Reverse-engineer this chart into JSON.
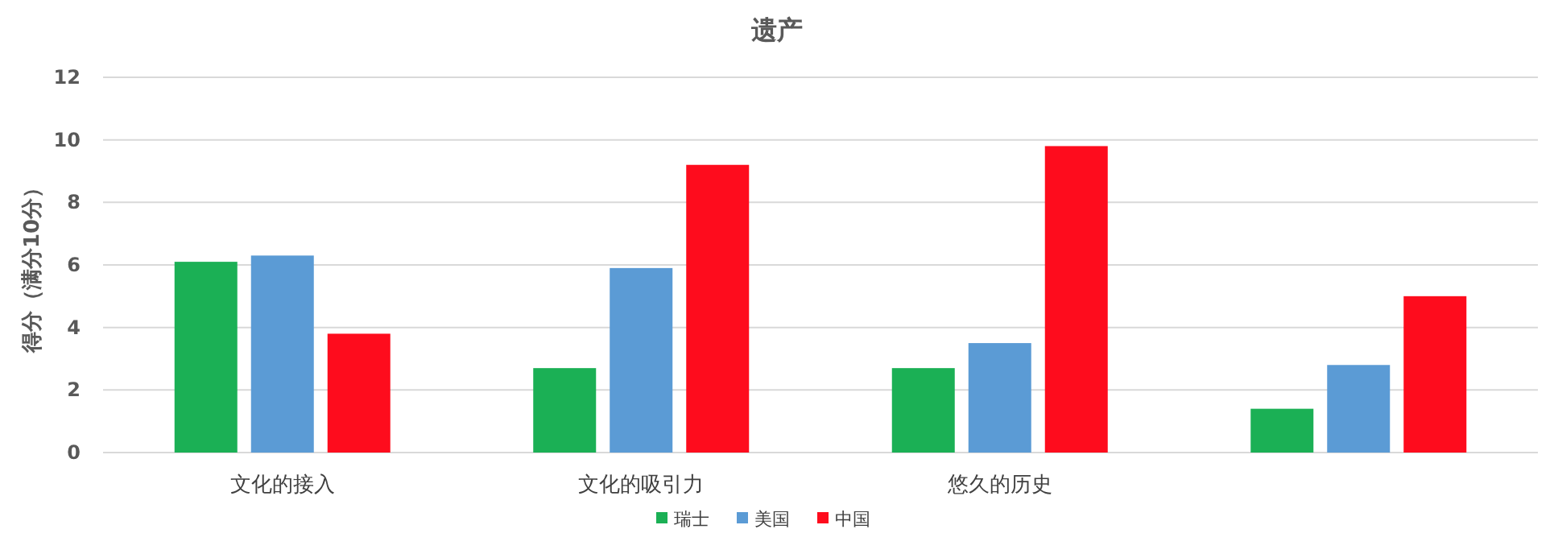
{
  "chart_data": {
    "type": "bar",
    "title": "遗产",
    "ylabel": "得分（满分10分）",
    "categories": [
      "文化的接入",
      "文化的吸引力",
      "悠久的历史",
      null
    ],
    "series": [
      {
        "name": "瑞士",
        "color": "#1bb055",
        "values": [
          6.1,
          2.7,
          2.7,
          1.4
        ]
      },
      {
        "name": "美国",
        "color": "#5b9bd5",
        "values": [
          6.3,
          5.9,
          3.5,
          2.8
        ]
      },
      {
        "name": "中国",
        "color": "#fe0c1d",
        "values": [
          3.8,
          9.2,
          9.8,
          5.0
        ]
      }
    ],
    "ylim": [
      0,
      12
    ],
    "yticks": [
      0,
      2,
      4,
      6,
      8,
      10,
      12
    ],
    "grid": "y",
    "legend": "bottom"
  }
}
